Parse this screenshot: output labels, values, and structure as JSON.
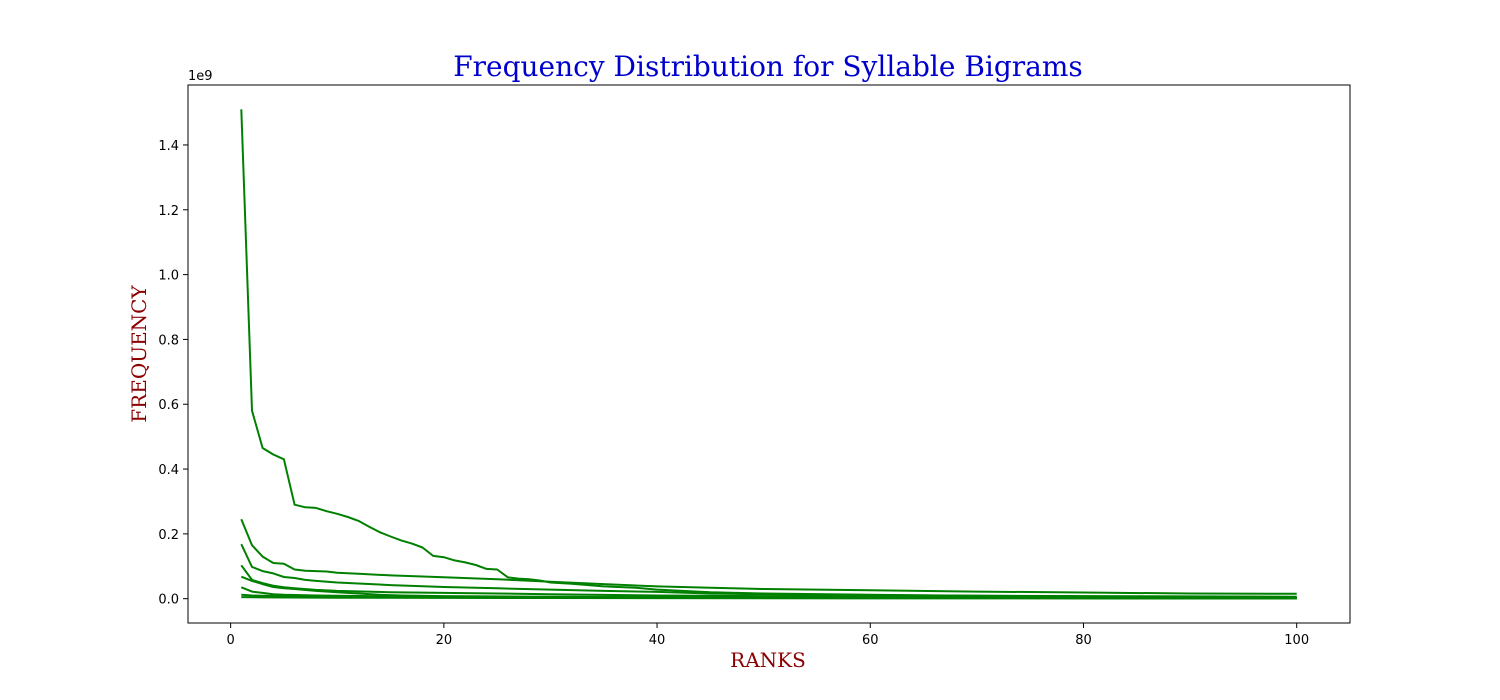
{
  "chart_data": {
    "type": "line",
    "title": "Frequency Distribution for Syllable Bigrams",
    "xlabel": "RANKS",
    "ylabel": "FREQUENCY",
    "y_offset_label": "1e9",
    "xlim": [
      -4,
      105
    ],
    "ylim": [
      -0.075,
      1.585
    ],
    "x_ticks": [
      0,
      20,
      40,
      60,
      80,
      100
    ],
    "y_ticks": [
      0.0,
      0.2,
      0.4,
      0.6,
      0.8,
      1.0,
      1.2,
      1.4
    ],
    "y_tick_labels": [
      "0.0",
      "0.2",
      "0.4",
      "0.6",
      "0.8",
      "1.0",
      "1.2",
      "1.4"
    ],
    "legend": "none",
    "grid": false,
    "colors": {
      "line": "#008000",
      "title": "#0000cc",
      "axis_label": "#8b0000",
      "frame": "#000000"
    },
    "series": [
      {
        "points": [
          [
            1,
            1.51
          ],
          [
            2,
            0.58
          ],
          [
            3,
            0.465
          ],
          [
            4,
            0.445
          ],
          [
            5,
            0.43
          ],
          [
            6,
            0.29
          ],
          [
            7,
            0.282
          ],
          [
            8,
            0.28
          ],
          [
            9,
            0.27
          ],
          [
            10,
            0.262
          ],
          [
            11,
            0.252
          ],
          [
            12,
            0.24
          ],
          [
            13,
            0.222
          ],
          [
            14,
            0.205
          ],
          [
            15,
            0.192
          ],
          [
            16,
            0.18
          ],
          [
            17,
            0.17
          ],
          [
            18,
            0.158
          ],
          [
            19,
            0.132
          ],
          [
            20,
            0.128
          ],
          [
            21,
            0.118
          ],
          [
            22,
            0.112
          ],
          [
            23,
            0.104
          ],
          [
            24,
            0.092
          ],
          [
            25,
            0.09
          ],
          [
            26,
            0.066
          ],
          [
            27,
            0.062
          ],
          [
            28,
            0.06
          ],
          [
            29,
            0.056
          ],
          [
            30,
            0.05
          ],
          [
            32,
            0.046
          ],
          [
            35,
            0.038
          ],
          [
            38,
            0.034
          ],
          [
            40,
            0.028
          ],
          [
            45,
            0.02
          ],
          [
            50,
            0.016
          ],
          [
            60,
            0.012
          ],
          [
            70,
            0.009
          ],
          [
            80,
            0.007
          ],
          [
            90,
            0.006
          ],
          [
            100,
            0.005
          ]
        ]
      },
      {
        "points": [
          [
            1,
            0.245
          ],
          [
            2,
            0.165
          ],
          [
            3,
            0.13
          ],
          [
            4,
            0.11
          ],
          [
            5,
            0.108
          ],
          [
            6,
            0.09
          ],
          [
            7,
            0.086
          ],
          [
            8,
            0.085
          ],
          [
            9,
            0.084
          ],
          [
            10,
            0.08
          ],
          [
            12,
            0.077
          ],
          [
            15,
            0.072
          ],
          [
            20,
            0.066
          ],
          [
            25,
            0.06
          ],
          [
            30,
            0.052
          ],
          [
            35,
            0.045
          ],
          [
            40,
            0.038
          ],
          [
            45,
            0.034
          ],
          [
            50,
            0.03
          ],
          [
            60,
            0.026
          ],
          [
            70,
            0.022
          ],
          [
            80,
            0.019
          ],
          [
            90,
            0.016
          ],
          [
            100,
            0.015
          ]
        ]
      },
      {
        "points": [
          [
            1,
            0.168
          ],
          [
            2,
            0.098
          ],
          [
            3,
            0.085
          ],
          [
            4,
            0.078
          ],
          [
            5,
            0.067
          ],
          [
            6,
            0.064
          ],
          [
            7,
            0.058
          ],
          [
            8,
            0.055
          ],
          [
            10,
            0.05
          ],
          [
            15,
            0.042
          ],
          [
            20,
            0.036
          ],
          [
            25,
            0.032
          ],
          [
            30,
            0.028
          ],
          [
            35,
            0.024
          ],
          [
            40,
            0.021
          ],
          [
            45,
            0.016
          ],
          [
            50,
            0.014
          ],
          [
            60,
            0.011
          ],
          [
            70,
            0.009
          ],
          [
            80,
            0.008
          ],
          [
            90,
            0.007
          ],
          [
            100,
            0.006
          ]
        ]
      },
      {
        "points": [
          [
            1,
            0.103
          ],
          [
            2,
            0.058
          ],
          [
            3,
            0.048
          ],
          [
            4,
            0.04
          ],
          [
            5,
            0.035
          ],
          [
            6,
            0.032
          ],
          [
            8,
            0.027
          ],
          [
            10,
            0.024
          ],
          [
            15,
            0.02
          ],
          [
            20,
            0.018
          ],
          [
            25,
            0.016
          ],
          [
            30,
            0.014
          ],
          [
            40,
            0.01
          ],
          [
            50,
            0.008
          ],
          [
            60,
            0.006
          ],
          [
            70,
            0.005
          ],
          [
            80,
            0.004
          ],
          [
            90,
            0.003
          ],
          [
            100,
            0.003
          ]
        ]
      },
      {
        "points": [
          [
            1,
            0.068
          ],
          [
            2,
            0.055
          ],
          [
            3,
            0.045
          ],
          [
            4,
            0.036
          ],
          [
            5,
            0.032
          ],
          [
            6,
            0.03
          ],
          [
            8,
            0.024
          ],
          [
            10,
            0.02
          ],
          [
            12,
            0.016
          ],
          [
            14,
            0.012
          ],
          [
            16,
            0.01
          ],
          [
            20,
            0.008
          ],
          [
            30,
            0.006
          ],
          [
            40,
            0.005
          ],
          [
            50,
            0.004
          ],
          [
            60,
            0.003
          ],
          [
            80,
            0.002
          ],
          [
            100,
            0.002
          ]
        ]
      },
      {
        "points": [
          [
            1,
            0.035
          ],
          [
            2,
            0.022
          ],
          [
            3,
            0.018
          ],
          [
            4,
            0.014
          ],
          [
            5,
            0.012
          ],
          [
            8,
            0.01
          ],
          [
            10,
            0.009
          ],
          [
            15,
            0.007
          ],
          [
            20,
            0.006
          ],
          [
            30,
            0.005
          ],
          [
            40,
            0.004
          ],
          [
            60,
            0.003
          ],
          [
            80,
            0.002
          ],
          [
            100,
            0.001
          ]
        ]
      },
      {
        "points": [
          [
            1,
            0.012
          ],
          [
            2,
            0.01
          ],
          [
            3,
            0.009
          ],
          [
            5,
            0.008
          ],
          [
            10,
            0.006
          ],
          [
            20,
            0.005
          ],
          [
            30,
            0.004
          ],
          [
            50,
            0.003
          ],
          [
            70,
            0.002
          ],
          [
            100,
            0.001
          ]
        ]
      },
      {
        "points": [
          [
            1,
            0.005
          ],
          [
            3,
            0.004
          ],
          [
            10,
            0.003
          ],
          [
            30,
            0.002
          ],
          [
            60,
            0.001
          ],
          [
            100,
            0.0005
          ]
        ]
      }
    ]
  }
}
